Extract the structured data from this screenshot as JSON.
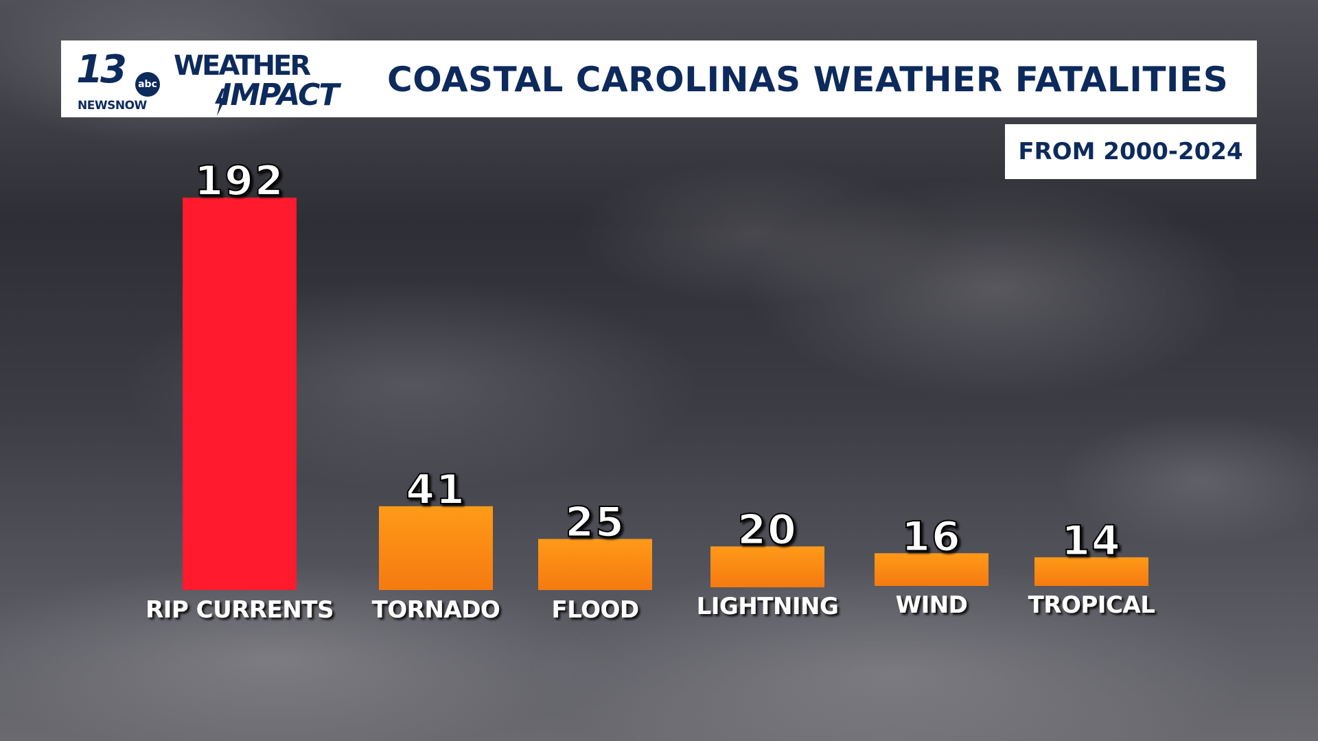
{
  "logo": {
    "channel": "13",
    "network": "abc",
    "station": "NEWSNOW",
    "brand_line1": "WEATHER",
    "brand_line2": "IMPACT"
  },
  "colors": {
    "highlight_bar": "#ff1a2e",
    "bar": "#ff8c10",
    "navy": "#0d2a5c"
  },
  "chart_data": {
    "type": "bar",
    "title": "COASTAL CAROLINAS WEATHER FATALITIES",
    "subtitle": "FROM 2000-2024",
    "categories": [
      "RIP CURRENTS",
      "TORNADO",
      "FLOOD",
      "LIGHTNING",
      "WIND",
      "TROPICAL"
    ],
    "values": [
      192,
      41,
      25,
      20,
      16,
      14
    ],
    "value_labels": [
      "192",
      "41",
      "25",
      "20",
      "16",
      "14"
    ],
    "highlight_index": 0,
    "ylim": [
      0,
      192
    ],
    "xlabel": "",
    "ylabel": "",
    "grid": false,
    "legend": "none"
  }
}
